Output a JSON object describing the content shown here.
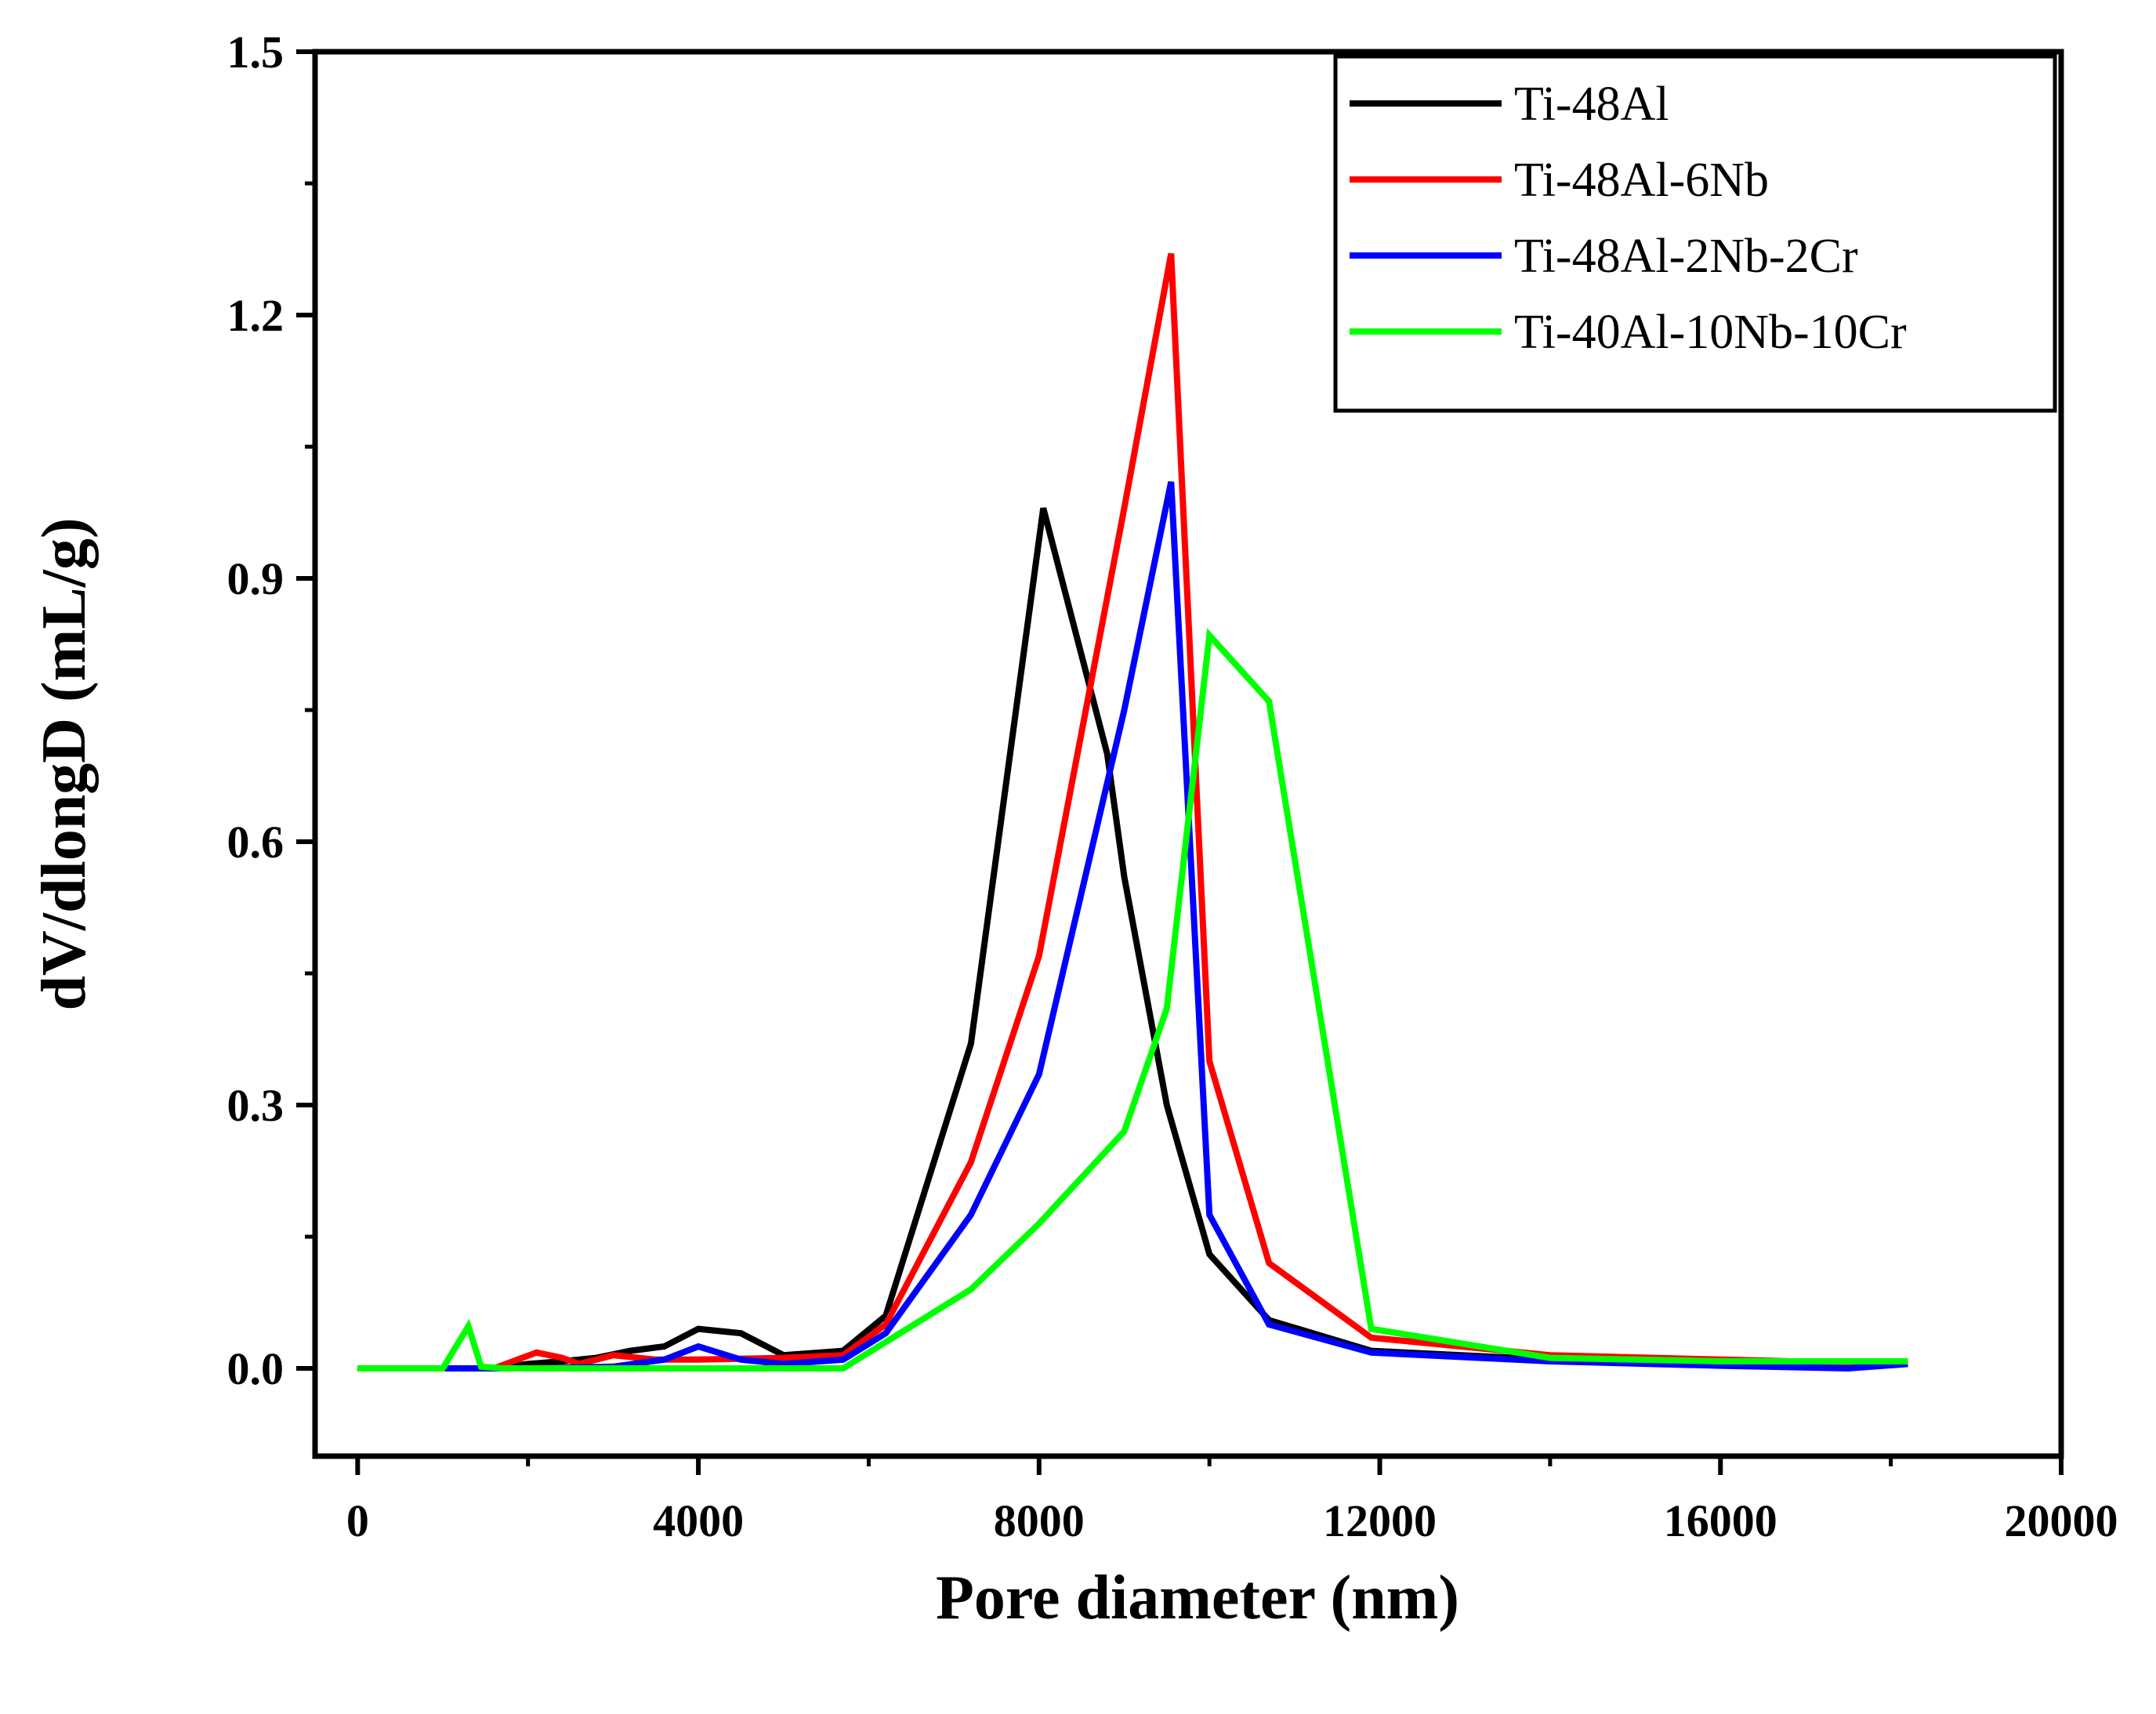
{
  "chart_data": {
    "type": "line",
    "title": "",
    "xlabel": "Pore diameter (nm)",
    "ylabel": "dV/dlongD (mL/g)",
    "xlim": [
      -500,
      20000
    ],
    "ylim": [
      -0.1,
      1.5
    ],
    "xticks": [
      0,
      4000,
      8000,
      12000,
      16000,
      20000
    ],
    "xtick_labels": [
      "0",
      "4000",
      "8000",
      "12000",
      "16000",
      "20000"
    ],
    "yticks": [
      0.0,
      0.3,
      0.6,
      0.9,
      1.2,
      1.5
    ],
    "ytick_labels": [
      "0.0",
      "0.3",
      "0.6",
      "0.9",
      "1.2",
      "1.5"
    ],
    "grid": false,
    "legend_position": "top-right",
    "series": [
      {
        "name": "Ti-48Al",
        "color": "#000000",
        "x": [
          0,
          1000,
          1600,
          2000,
          2400,
          2800,
          3200,
          3600,
          4000,
          4500,
          5000,
          5700,
          6200,
          7200,
          8050,
          8800,
          9000,
          9500,
          10000,
          10700,
          11900,
          14000,
          16000,
          18200
        ],
        "y": [
          0,
          0,
          0,
          0.005,
          0.008,
          0.012,
          0.02,
          0.025,
          0.045,
          0.04,
          0.015,
          0.02,
          0.06,
          0.37,
          0.98,
          0.7,
          0.56,
          0.3,
          0.13,
          0.055,
          0.02,
          0.01,
          0.008,
          0.005
        ]
      },
      {
        "name": "Ti-48Al-6Nb",
        "color": "#ff0000",
        "x": [
          0,
          1000,
          1600,
          2100,
          2400,
          2600,
          3000,
          3500,
          4000,
          5000,
          5700,
          6200,
          7200,
          8000,
          9000,
          9550,
          10000,
          10700,
          11900,
          14000,
          16000,
          18200
        ],
        "y": [
          0,
          0,
          0,
          0.018,
          0.012,
          0.005,
          0.015,
          0.01,
          0.01,
          0.012,
          0.015,
          0.05,
          0.235,
          0.47,
          0.98,
          1.27,
          0.35,
          0.12,
          0.035,
          0.015,
          0.01,
          0.005
        ]
      },
      {
        "name": "Ti-48Al-2Nb-2Cr",
        "color": "#0000ff",
        "x": [
          0,
          1000,
          1600,
          2000,
          3000,
          3600,
          4000,
          4500,
          5000,
          5700,
          6200,
          7200,
          8000,
          9000,
          9550,
          10000,
          10700,
          11900,
          14000,
          16000,
          17500,
          18200
        ],
        "y": [
          0,
          0,
          0,
          0,
          0.002,
          0.01,
          0.025,
          0.01,
          0.005,
          0.01,
          0.04,
          0.175,
          0.335,
          0.75,
          1.01,
          0.175,
          0.05,
          0.018,
          0.008,
          0.003,
          0,
          0.005
        ]
      },
      {
        "name": "Ti-40Al-10Nb-10Cr",
        "color": "#00ff00",
        "x": [
          0,
          1000,
          1300,
          1450,
          1700,
          2000,
          4000,
          5700,
          6200,
          7200,
          8000,
          9000,
          9500,
          10000,
          10700,
          11900,
          14000,
          16000,
          18200
        ],
        "y": [
          0,
          0,
          0.048,
          0.002,
          0,
          0,
          0,
          0,
          0.03,
          0.09,
          0.165,
          0.27,
          0.41,
          0.835,
          0.76,
          0.045,
          0.012,
          0.008,
          0.008
        ]
      }
    ]
  }
}
